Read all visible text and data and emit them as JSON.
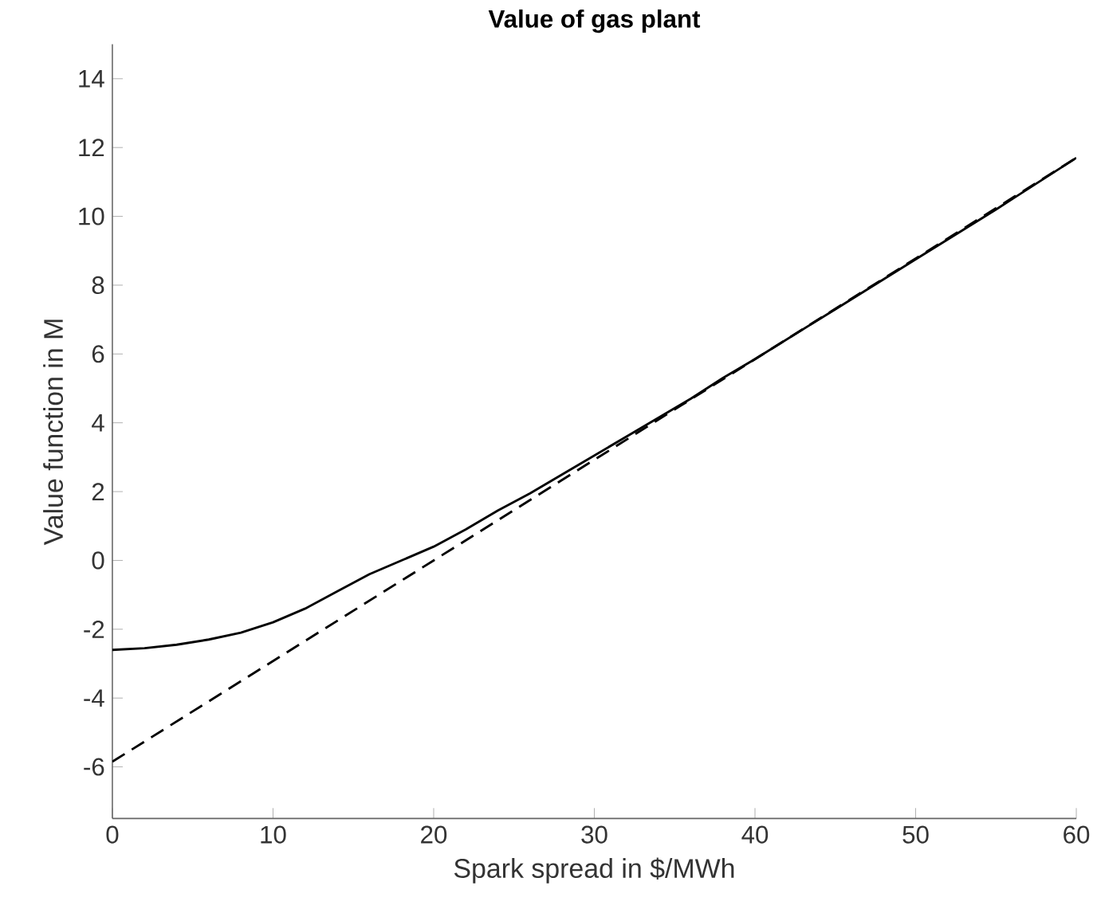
{
  "chart_data": {
    "type": "line",
    "title": "Value of gas plant",
    "xlabel": "Spark spread in $/MWh",
    "ylabel": "Value function in M",
    "xlim": [
      0,
      60
    ],
    "ylim": [
      -7.5,
      15
    ],
    "xticks": [
      0,
      10,
      20,
      30,
      40,
      50,
      60
    ],
    "yticks": [
      -6,
      -4,
      -2,
      0,
      2,
      4,
      6,
      8,
      10,
      12,
      14
    ],
    "marker": "none",
    "series": [
      {
        "color": "#000000",
        "line_style": "solid",
        "x": [
          0,
          2,
          4,
          6,
          8,
          10,
          12,
          14,
          16,
          18,
          20,
          22,
          24,
          26,
          28,
          30,
          32,
          34,
          36,
          38,
          40,
          45,
          50,
          55,
          60
        ],
        "values": [
          -2.6,
          -2.55,
          -2.45,
          -2.3,
          -2.1,
          -1.8,
          -1.4,
          -0.9,
          -0.4,
          0.0,
          0.4,
          0.9,
          1.45,
          1.95,
          2.5,
          3.05,
          3.6,
          4.15,
          4.7,
          5.3,
          5.85,
          7.3,
          8.75,
          10.2,
          11.7
        ]
      },
      {
        "color": "#000000",
        "line_style": "dashed",
        "x": [
          0,
          60
        ],
        "values": [
          -5.85,
          11.7
        ]
      }
    ]
  }
}
